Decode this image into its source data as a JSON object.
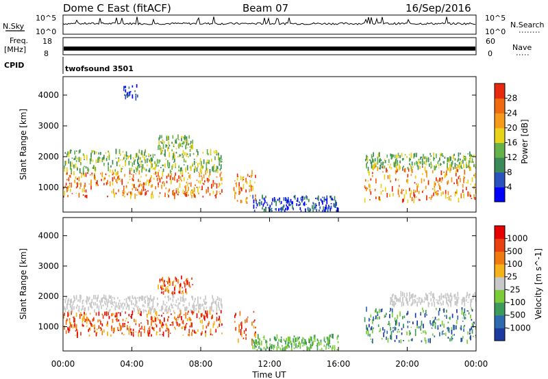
{
  "header": {
    "title": "Dome C East (fitACF)",
    "beam": "Beam 07",
    "date": "16/Sep/2016"
  },
  "top_panels": {
    "nsky_label": "N.Sky",
    "nsky_ticks": [
      "10^5",
      "10^0"
    ],
    "nsearch_label": "N.Search",
    "nsearch_ticks": [
      "10^5",
      "10^0"
    ],
    "freq_label": "Freq.",
    "freq_unit": "[MHz]",
    "freq_ticks": [
      "18",
      "8"
    ],
    "nave_label": "Nave",
    "nave_ticks": [
      "60",
      "0"
    ],
    "cpid_label": "CPID",
    "cpid_value": "twofsound 3501"
  },
  "chart_data": [
    {
      "type": "heatmap",
      "name": "power-panel",
      "ylabel": "Slant Range [km]",
      "ylim": [
        200,
        4600
      ],
      "yticks": [
        1000,
        2000,
        3000,
        4000
      ],
      "xlim": [
        0,
        24
      ],
      "colorbar": {
        "label": "Power [dB]",
        "ticks": [
          "28",
          "24",
          "20",
          "16",
          "12",
          "8",
          "4"
        ],
        "colors": [
          "#0000ff",
          "#2a52be",
          "#3b8a5a",
          "#66b24a",
          "#e8d21a",
          "#f59a1a",
          "#f06a10",
          "#e62a10"
        ]
      },
      "regions": [
        {
          "x": [
            0.0,
            9.2
          ],
          "y": [
            700,
            1500
          ],
          "level": "high"
        },
        {
          "x": [
            0.0,
            9.2
          ],
          "y": [
            1500,
            2200
          ],
          "level": "mid"
        },
        {
          "x": [
            5.5,
            7.5
          ],
          "y": [
            2200,
            2650
          ],
          "level": "mid"
        },
        {
          "x": [
            3.5,
            4.3
          ],
          "y": [
            3900,
            4300
          ],
          "level": "low"
        },
        {
          "x": [
            9.9,
            11.2
          ],
          "y": [
            500,
            1500
          ],
          "level": "high"
        },
        {
          "x": [
            11.0,
            16.0
          ],
          "y": [
            200,
            700
          ],
          "level": "low"
        },
        {
          "x": [
            17.5,
            24.0
          ],
          "y": [
            500,
            1700
          ],
          "level": "high"
        },
        {
          "x": [
            17.5,
            24.0
          ],
          "y": [
            1600,
            2100
          ],
          "level": "mid"
        }
      ]
    },
    {
      "type": "heatmap",
      "name": "velocity-panel",
      "ylabel": "Slant Range [km]",
      "ylim": [
        200,
        4600
      ],
      "yticks": [
        1000,
        2000,
        3000,
        4000
      ],
      "xlim": [
        0,
        24
      ],
      "xticks": [
        "00:00",
        "04:00",
        "08:00",
        "12:00",
        "16:00",
        "20:00",
        "00:00"
      ],
      "xlabel": "Time UT",
      "colorbar": {
        "label": "Velocity [m s^-1]",
        "ticks": [
          "1000",
          "500",
          "100",
          "25",
          "-25",
          "-100",
          "-500",
          "-1000"
        ],
        "colors": [
          "#1a3aa0",
          "#2f6ab0",
          "#3d9a5a",
          "#7ccc3a",
          "#c8c8c8",
          "#f5b21a",
          "#f07a10",
          "#e84010",
          "#e60000"
        ]
      },
      "regions": [
        {
          "x": [
            0.0,
            9.2
          ],
          "y": [
            700,
            1500
          ],
          "level": "negative"
        },
        {
          "x": [
            0.0,
            9.2
          ],
          "y": [
            1500,
            2000
          ],
          "level": "near-zero"
        },
        {
          "x": [
            5.5,
            7.5
          ],
          "y": [
            2100,
            2650
          ],
          "level": "negative"
        },
        {
          "x": [
            9.9,
            11.2
          ],
          "y": [
            400,
            1500
          ],
          "level": "negative"
        },
        {
          "x": [
            11.0,
            16.0
          ],
          "y": [
            200,
            700
          ],
          "level": "positive-low"
        },
        {
          "x": [
            17.5,
            24.0
          ],
          "y": [
            500,
            1600
          ],
          "level": "positive"
        },
        {
          "x": [
            19.0,
            24.0
          ],
          "y": [
            1700,
            2100
          ],
          "level": "near-zero"
        }
      ]
    }
  ]
}
